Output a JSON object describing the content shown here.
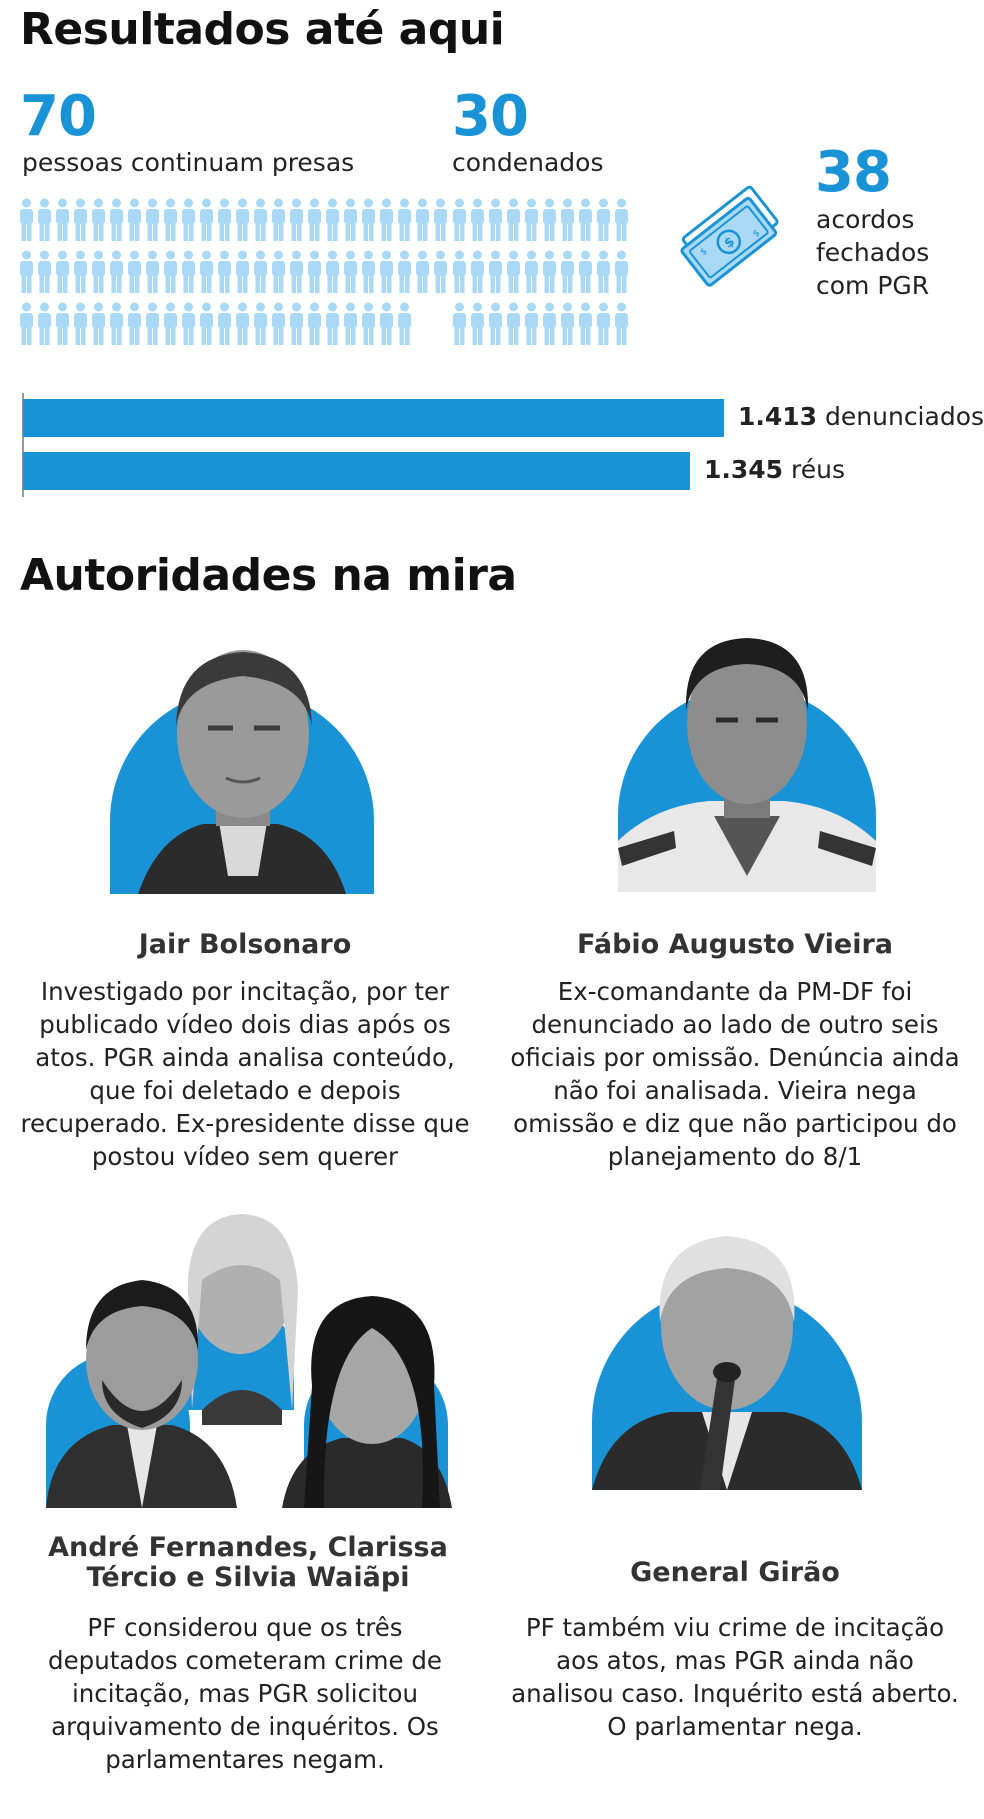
{
  "results": {
    "title": "Resultados até aqui",
    "presas": {
      "value": "70",
      "label": "pessoas continuam presas",
      "count": 70
    },
    "condenados": {
      "value": "30",
      "label": "condenados",
      "count": 30
    },
    "acordos": {
      "value": "38",
      "label_lines": [
        "acordos",
        "fechados",
        "com PGR"
      ],
      "icon": "money-icon"
    },
    "bars": [
      {
        "value": 1413,
        "value_label": "1.413",
        "label": "denunciados"
      },
      {
        "value": 1345,
        "value_label": "1.345",
        "label": "réus"
      }
    ]
  },
  "authorities": {
    "title": "Autoridades na mira",
    "people": [
      {
        "name": "Jair Bolsonaro",
        "description": "Investigado por incitação, por ter publicado vídeo dois dias após os atos. PGR ainda analisa conteúdo, que foi deletado e depois recuperado. Ex-presidente disse que postou vídeo sem querer"
      },
      {
        "name": "Fábio Augusto Vieira",
        "description": "Ex-comandante da PM-DF foi denunciado ao lado de outro seis oficiais por omissão. Denúncia ainda não foi analisada. Vieira nega omissão e diz que não participou do planejamento do 8/1"
      },
      {
        "name": "André Fernandes, Clarissa Tércio e Silvia Waiãpi",
        "description": "PF considerou que os três deputados cometeram crime de incitação, mas PGR solicitou arquivamento de inquéritos. Os parlamentares negam."
      },
      {
        "name": "General Girão",
        "description": "PF também viu crime de incitação aos atos, mas PGR ainda não analisou caso. Inquérito está aberto. O parlamentar nega."
      }
    ]
  },
  "colors": {
    "accent": "#1a93d6",
    "person_icon": "#a9d9f5",
    "photo_bg": "#1a93d6"
  }
}
